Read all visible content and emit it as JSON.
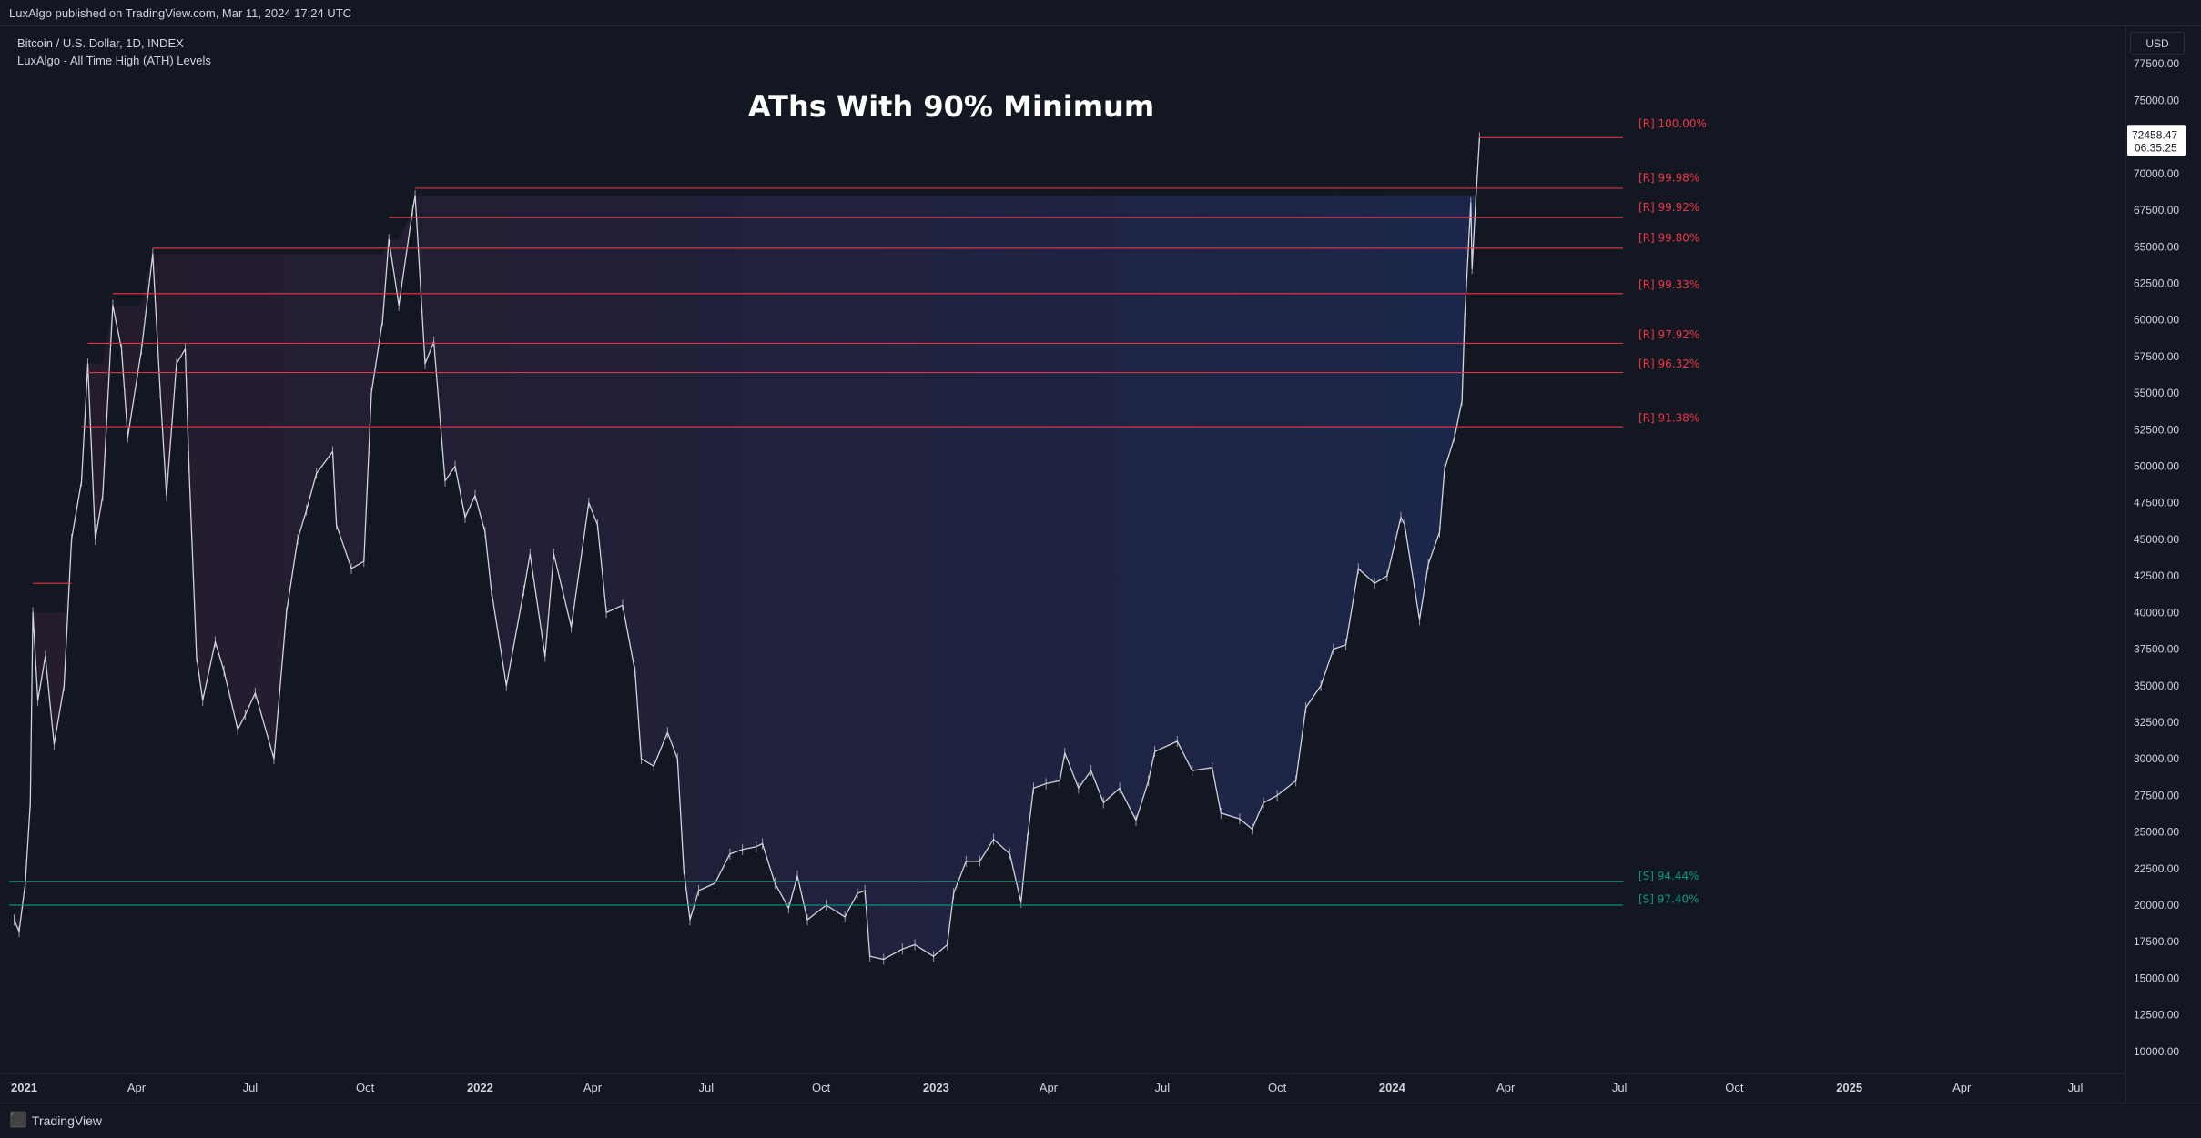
{
  "header": {
    "published": "LuxAlgo published on TradingView.com, Mar 11, 2024 17:24 UTC"
  },
  "legend": {
    "symbol": "Bitcoin / U.S. Dollar, 1D, INDEX",
    "indicator": "LuxAlgo - All Time High (ATH) Levels"
  },
  "currency_button": "USD",
  "footer": {
    "brand": "TradingView"
  },
  "colors": {
    "background": "#131722",
    "resistance": "#f23645",
    "support": "#089981",
    "candle": "#d1d4dc",
    "fill": "#1e2a55"
  },
  "chart_data": {
    "type": "line",
    "title": "AThs With 90% Minimum",
    "ylim": [
      8500,
      80000
    ],
    "y_ticks": [
      10000,
      12500,
      15000,
      17500,
      20000,
      22500,
      25000,
      27500,
      30000,
      32500,
      35000,
      37500,
      40000,
      42500,
      45000,
      47500,
      50000,
      52500,
      55000,
      57500,
      60000,
      62500,
      65000,
      67500,
      70000,
      72500,
      75000,
      77500
    ],
    "y_tick_labels": [
      "10000.00",
      "12500.00",
      "15000.00",
      "17500.00",
      "20000.00",
      "22500.00",
      "25000.00",
      "27500.00",
      "30000.00",
      "32500.00",
      "35000.00",
      "37500.00",
      "40000.00",
      "42500.00",
      "45000.00",
      "47500.00",
      "50000.00",
      "52500.00",
      "55000.00",
      "57500.00",
      "60000.00",
      "62500.00",
      "65000.00",
      "67500.00",
      "70000.00",
      "72500.00",
      "75000.00",
      "77500.00"
    ],
    "x_ticks": [
      {
        "label": "2021",
        "date": "2021-01-01"
      },
      {
        "label": "Apr",
        "date": "2021-04-01"
      },
      {
        "label": "Jul",
        "date": "2021-07-01"
      },
      {
        "label": "Oct",
        "date": "2021-10-01"
      },
      {
        "label": "2022",
        "date": "2022-01-01"
      },
      {
        "label": "Apr",
        "date": "2022-04-01"
      },
      {
        "label": "Jul",
        "date": "2022-07-01"
      },
      {
        "label": "Oct",
        "date": "2022-10-01"
      },
      {
        "label": "2023",
        "date": "2023-01-01"
      },
      {
        "label": "Apr",
        "date": "2023-04-01"
      },
      {
        "label": "Jul",
        "date": "2023-07-01"
      },
      {
        "label": "Oct",
        "date": "2023-10-01"
      },
      {
        "label": "2024",
        "date": "2024-01-01"
      },
      {
        "label": "Apr",
        "date": "2024-04-01"
      },
      {
        "label": "Jul",
        "date": "2024-07-01"
      },
      {
        "label": "Oct",
        "date": "2024-10-01"
      },
      {
        "label": "2025",
        "date": "2025-01-01"
      },
      {
        "label": "Apr",
        "date": "2025-04-01"
      },
      {
        "label": "Jul",
        "date": "2025-07-01"
      }
    ],
    "price_series": [
      [
        "2020-12-24",
        19000
      ],
      [
        "2020-12-28",
        18200
      ],
      [
        "2021-01-02",
        21500
      ],
      [
        "2021-01-06",
        27000
      ],
      [
        "2021-01-08",
        40000
      ],
      [
        "2021-01-12",
        34000
      ],
      [
        "2021-01-18",
        37000
      ],
      [
        "2021-01-25",
        31000
      ],
      [
        "2021-02-02",
        35000
      ],
      [
        "2021-02-08",
        45000
      ],
      [
        "2021-02-16",
        49000
      ],
      [
        "2021-02-21",
        57000
      ],
      [
        "2021-02-27",
        45000
      ],
      [
        "2021-03-05",
        48000
      ],
      [
        "2021-03-13",
        61000
      ],
      [
        "2021-03-20",
        58000
      ],
      [
        "2021-03-25",
        52000
      ],
      [
        "2021-04-05",
        58000
      ],
      [
        "2021-04-14",
        64500
      ],
      [
        "2021-04-20",
        55000
      ],
      [
        "2021-04-25",
        48000
      ],
      [
        "2021-05-03",
        57000
      ],
      [
        "2021-05-10",
        58000
      ],
      [
        "2021-05-13",
        50000
      ],
      [
        "2021-05-19",
        37000
      ],
      [
        "2021-05-24",
        34000
      ],
      [
        "2021-06-03",
        38000
      ],
      [
        "2021-06-10",
        36000
      ],
      [
        "2021-06-21",
        32000
      ],
      [
        "2021-06-27",
        33000
      ],
      [
        "2021-07-05",
        34500
      ],
      [
        "2021-07-20",
        30000
      ],
      [
        "2021-07-30",
        40000
      ],
      [
        "2021-08-08",
        45000
      ],
      [
        "2021-08-15",
        47000
      ],
      [
        "2021-08-23",
        49500
      ],
      [
        "2021-09-05",
        51000
      ],
      [
        "2021-09-08",
        46000
      ],
      [
        "2021-09-20",
        43000
      ],
      [
        "2021-09-30",
        43500
      ],
      [
        "2021-10-06",
        55000
      ],
      [
        "2021-10-15",
        60000
      ],
      [
        "2021-10-20",
        65500
      ],
      [
        "2021-10-28",
        61000
      ],
      [
        "2021-11-08",
        67500
      ],
      [
        "2021-11-10",
        68500
      ],
      [
        "2021-11-18",
        57000
      ],
      [
        "2021-11-25",
        58500
      ],
      [
        "2021-12-04",
        49000
      ],
      [
        "2021-12-12",
        50000
      ],
      [
        "2021-12-20",
        46500
      ],
      [
        "2021-12-28",
        48000
      ],
      [
        "2022-01-05",
        45500
      ],
      [
        "2022-01-10",
        41500
      ],
      [
        "2022-01-22",
        35000
      ],
      [
        "2022-02-05",
        41500
      ],
      [
        "2022-02-10",
        44000
      ],
      [
        "2022-02-22",
        37000
      ],
      [
        "2022-03-01",
        44000
      ],
      [
        "2022-03-15",
        39000
      ],
      [
        "2022-03-29",
        47500
      ],
      [
        "2022-04-05",
        46000
      ],
      [
        "2022-04-12",
        40000
      ],
      [
        "2022-04-25",
        40500
      ],
      [
        "2022-05-05",
        36000
      ],
      [
        "2022-05-10",
        30000
      ],
      [
        "2022-05-20",
        29500
      ],
      [
        "2022-05-31",
        31800
      ],
      [
        "2022-06-08",
        30000
      ],
      [
        "2022-06-13",
        22500
      ],
      [
        "2022-06-18",
        19000
      ],
      [
        "2022-06-25",
        21000
      ],
      [
        "2022-07-08",
        21500
      ],
      [
        "2022-07-20",
        23500
      ],
      [
        "2022-07-30",
        23800
      ],
      [
        "2022-08-10",
        24000
      ],
      [
        "2022-08-15",
        24200
      ],
      [
        "2022-08-25",
        21500
      ],
      [
        "2022-09-05",
        19800
      ],
      [
        "2022-09-12",
        22000
      ],
      [
        "2022-09-20",
        19000
      ],
      [
        "2022-10-05",
        20000
      ],
      [
        "2022-10-20",
        19200
      ],
      [
        "2022-10-30",
        20800
      ],
      [
        "2022-11-05",
        21000
      ],
      [
        "2022-11-09",
        16500
      ],
      [
        "2022-11-20",
        16300
      ],
      [
        "2022-12-05",
        17000
      ],
      [
        "2022-12-15",
        17300
      ],
      [
        "2022-12-30",
        16500
      ],
      [
        "2023-01-10",
        17300
      ],
      [
        "2023-01-15",
        20800
      ],
      [
        "2023-01-25",
        23000
      ],
      [
        "2023-02-05",
        23000
      ],
      [
        "2023-02-16",
        24500
      ],
      [
        "2023-03-01",
        23500
      ],
      [
        "2023-03-10",
        20200
      ],
      [
        "2023-03-15",
        24500
      ],
      [
        "2023-03-20",
        28000
      ],
      [
        "2023-03-30",
        28300
      ],
      [
        "2023-04-10",
        28500
      ],
      [
        "2023-04-14",
        30400
      ],
      [
        "2023-04-25",
        28000
      ],
      [
        "2023-05-05",
        29200
      ],
      [
        "2023-05-15",
        27000
      ],
      [
        "2023-05-28",
        28000
      ],
      [
        "2023-06-10",
        25800
      ],
      [
        "2023-06-20",
        28500
      ],
      [
        "2023-06-25",
        30500
      ],
      [
        "2023-07-13",
        31200
      ],
      [
        "2023-07-25",
        29200
      ],
      [
        "2023-08-10",
        29400
      ],
      [
        "2023-08-17",
        26300
      ],
      [
        "2023-09-01",
        25900
      ],
      [
        "2023-09-11",
        25200
      ],
      [
        "2023-09-20",
        27000
      ],
      [
        "2023-10-01",
        27500
      ],
      [
        "2023-10-16",
        28500
      ],
      [
        "2023-10-24",
        33500
      ],
      [
        "2023-11-05",
        35000
      ],
      [
        "2023-11-15",
        37500
      ],
      [
        "2023-11-25",
        37800
      ],
      [
        "2023-12-05",
        43000
      ],
      [
        "2023-12-18",
        42000
      ],
      [
        "2023-12-28",
        42500
      ],
      [
        "2024-01-08",
        46500
      ],
      [
        "2024-01-11",
        46000
      ],
      [
        "2024-01-23",
        39500
      ],
      [
        "2024-01-30",
        43300
      ],
      [
        "2024-02-08",
        45500
      ],
      [
        "2024-02-12",
        49800
      ],
      [
        "2024-02-20",
        52000
      ],
      [
        "2024-02-26",
        54500
      ],
      [
        "2024-02-28",
        60000
      ],
      [
        "2024-03-04",
        68000
      ],
      [
        "2024-03-05",
        63500
      ],
      [
        "2024-03-08",
        68200
      ],
      [
        "2024-03-11",
        72458
      ]
    ],
    "levels": [
      {
        "type": "resistance",
        "label": "[R] 100.00%",
        "price": 72458,
        "start": "2024-03-11",
        "label_price": 73400
      },
      {
        "type": "resistance",
        "label": "[R] 99.98%",
        "price": 69000,
        "start": "2021-11-10",
        "label_price": 69700
      },
      {
        "type": "resistance",
        "label": "[R] 99.92%",
        "price": 67000,
        "start": "2021-10-20",
        "label_price": 67700
      },
      {
        "type": "resistance",
        "label": "[R] 99.80%",
        "price": 64900,
        "start": "2021-04-14",
        "label_price": 65600
      },
      {
        "type": "resistance",
        "label": "[R] 99.33%",
        "price": 61800,
        "start": "2021-03-13",
        "label_price": 62400
      },
      {
        "type": "resistance",
        "label": "[R] 97.92%",
        "price": 58400,
        "start": "2021-02-21",
        "label_price": 59000
      },
      {
        "type": "resistance",
        "label": "[R] 96.32%",
        "price": 56400,
        "start": "2021-02-21",
        "label_price": 57000
      },
      {
        "type": "resistance",
        "label": "[R] 91.38%",
        "price": 52700,
        "start": "2021-02-16",
        "label_price": 53300
      },
      {
        "type": "resistance",
        "label": "",
        "price": 42000,
        "start": "2021-01-08",
        "end": "2021-02-08"
      },
      {
        "type": "support",
        "label": "[S] 94.44%",
        "price": 21600,
        "start": "2020-12-20",
        "label_price": 22000
      },
      {
        "type": "support",
        "label": "[S] 97.40%",
        "price": 20000,
        "start": "2020-12-20",
        "label_price": 20400
      }
    ],
    "last_price": "72458.47",
    "countdown": "06:35:25"
  }
}
